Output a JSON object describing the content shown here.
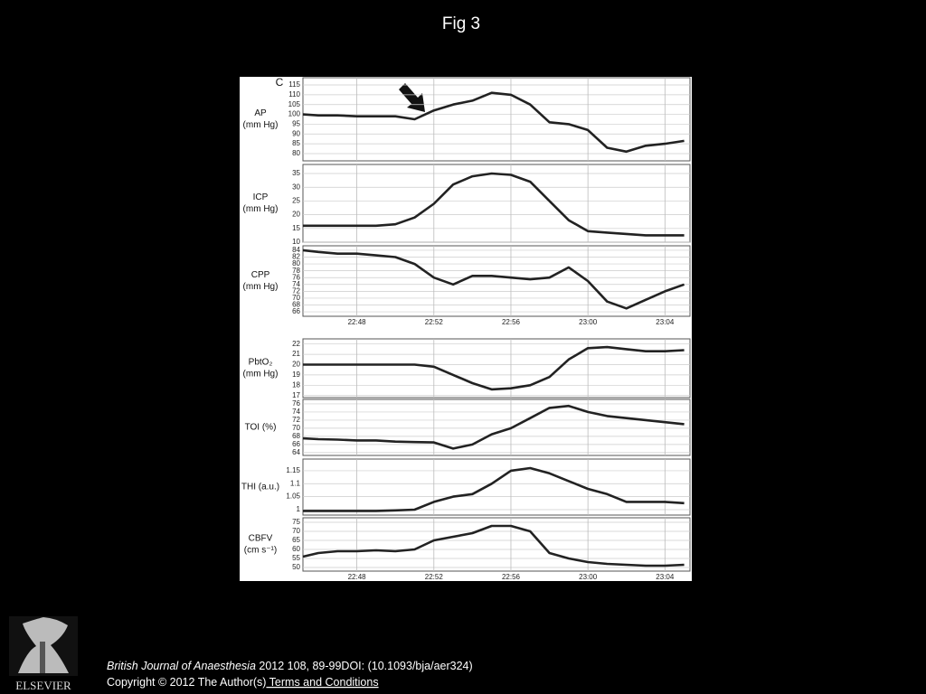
{
  "slide_title": "Fig 3",
  "logo_text": "ELSEVIER",
  "footer": {
    "journal": "British Journal of Anaesthesia",
    "citation": " 2012 108, 89-99DOI: (10.1093/bja/aer324)",
    "copyright": "Copyright © 2012 The Author(s)",
    "link": " Terms and Conditions"
  },
  "chart_data": [
    {
      "type": "line",
      "panel_label": "C",
      "ylabel": [
        "AP",
        "(mm Hg)"
      ],
      "color": "#222222",
      "grid": true,
      "xtick_labels": false,
      "x": [
        1365.2,
        1366,
        1367,
        1368,
        1369,
        1370,
        1371,
        1372,
        1373,
        1374,
        1375,
        1376,
        1377,
        1378,
        1379,
        1380,
        1381,
        1382,
        1383,
        1384,
        1385
      ],
      "values": [
        100,
        99.5,
        99.5,
        99,
        99,
        99,
        97.5,
        102,
        105,
        107,
        111,
        110,
        105,
        96,
        95,
        92,
        83,
        81,
        84,
        85,
        86.5
      ],
      "xlim": [
        1365.2,
        1385.3
      ],
      "ylim": [
        76.3,
        118.7
      ],
      "yticks": [
        80,
        85,
        90,
        95,
        100,
        105,
        110,
        115
      ],
      "xticks": [
        {
          "value": 1368,
          "label": "22:48"
        },
        {
          "value": 1372,
          "label": "22:52"
        },
        {
          "value": 1376,
          "label": "22:56"
        },
        {
          "value": 1380,
          "label": "23:00"
        },
        {
          "value": 1384,
          "label": "23:04"
        }
      ]
    },
    {
      "type": "line",
      "ylabel": [
        "ICP",
        "(mm Hg)"
      ],
      "color": "#222222",
      "grid": true,
      "xtick_labels": false,
      "x": [
        1365.2,
        1366,
        1367,
        1368,
        1369,
        1370,
        1371,
        1372,
        1373,
        1374,
        1375,
        1376,
        1377,
        1378,
        1379,
        1380,
        1381,
        1382,
        1383,
        1384,
        1385
      ],
      "values": [
        16,
        16,
        16,
        16,
        16,
        16.5,
        19,
        24,
        31,
        34,
        35,
        34.5,
        32,
        25,
        18,
        14,
        13.5,
        13,
        12.5,
        12.5,
        12.5
      ],
      "xlim": [
        1365.2,
        1385.3
      ],
      "ylim": [
        10,
        38.3
      ],
      "yticks": [
        10,
        15,
        20,
        25,
        30,
        35
      ],
      "xticks": [
        {
          "value": 1368,
          "label": "22:48"
        },
        {
          "value": 1372,
          "label": "22:52"
        },
        {
          "value": 1376,
          "label": "22:56"
        },
        {
          "value": 1380,
          "label": "23:00"
        },
        {
          "value": 1384,
          "label": "23:04"
        }
      ]
    },
    {
      "type": "line",
      "ylabel": [
        "CPP",
        "(mm Hg)"
      ],
      "color": "#222222",
      "grid": true,
      "xtick_labels": true,
      "x": [
        1365.2,
        1366,
        1367,
        1368,
        1369,
        1370,
        1371,
        1372,
        1373,
        1374,
        1375,
        1376,
        1377,
        1378,
        1379,
        1380,
        1381,
        1382,
        1383,
        1384,
        1385
      ],
      "values": [
        84,
        83.5,
        83,
        83,
        82.5,
        82,
        80,
        76,
        74,
        76.5,
        76.5,
        76,
        75.5,
        76,
        79,
        75,
        69,
        67,
        69.5,
        72,
        74
      ],
      "xlim": [
        1365.2,
        1385.3
      ],
      "ylim": [
        64.7,
        85.3
      ],
      "yticks": [
        66,
        68,
        70,
        72,
        74,
        76,
        78,
        80,
        82,
        84
      ],
      "xticks": [
        {
          "value": 1368,
          "label": "22:48"
        },
        {
          "value": 1372,
          "label": "22:52"
        },
        {
          "value": 1376,
          "label": "22:56"
        },
        {
          "value": 1380,
          "label": "23:00"
        },
        {
          "value": 1384,
          "label": "23:04"
        }
      ]
    },
    {
      "type": "line",
      "ylabel": [
        "PbtO₂",
        "(mm Hg)"
      ],
      "color": "#222222",
      "grid": true,
      "xtick_labels": false,
      "x": [
        1365.2,
        1366,
        1367,
        1368,
        1369,
        1370,
        1371,
        1372,
        1373,
        1374,
        1375,
        1376,
        1377,
        1378,
        1379,
        1380,
        1381,
        1382,
        1383,
        1384,
        1385
      ],
      "values": [
        20,
        20,
        20,
        20,
        20,
        20,
        20,
        19.8,
        19,
        18.2,
        17.6,
        17.7,
        18,
        18.8,
        20.5,
        21.6,
        21.7,
        21.5,
        21.3,
        21.3,
        21.4
      ],
      "xlim": [
        1365.2,
        1385.3
      ],
      "ylim": [
        16.8,
        22.5
      ],
      "yticks": [
        17,
        18,
        19,
        20,
        21,
        22
      ],
      "xticks": [
        {
          "value": 1368,
          "label": "22:48"
        },
        {
          "value": 1372,
          "label": "22:52"
        },
        {
          "value": 1376,
          "label": "22:56"
        },
        {
          "value": 1380,
          "label": "23:00"
        },
        {
          "value": 1384,
          "label": "23:04"
        }
      ]
    },
    {
      "type": "line",
      "ylabel": [
        "TOI (%)"
      ],
      "color": "#222222",
      "grid": true,
      "xtick_labels": false,
      "x": [
        1365.2,
        1366,
        1367,
        1368,
        1369,
        1370,
        1371,
        1372,
        1373,
        1374,
        1375,
        1376,
        1377,
        1378,
        1379,
        1380,
        1381,
        1382,
        1383,
        1384,
        1385
      ],
      "values": [
        67.5,
        67.3,
        67.2,
        67,
        67,
        66.7,
        66.6,
        66.5,
        65,
        66,
        68.5,
        70,
        72.5,
        75,
        75.5,
        74,
        73,
        72.5,
        72,
        71.5,
        71
      ],
      "xlim": [
        1365.2,
        1385.3
      ],
      "ylim": [
        63.3,
        77.1
      ],
      "yticks": [
        64,
        66,
        68,
        70,
        72,
        74,
        76
      ],
      "xticks": [
        {
          "value": 1368,
          "label": "22:48"
        },
        {
          "value": 1372,
          "label": "22:52"
        },
        {
          "value": 1376,
          "label": "22:56"
        },
        {
          "value": 1380,
          "label": "23:00"
        },
        {
          "value": 1384,
          "label": "23:04"
        }
      ]
    },
    {
      "type": "line",
      "ylabel": [
        "THI (a.u.)"
      ],
      "color": "#222222",
      "grid": true,
      "xtick_labels": false,
      "x": [
        1365.2,
        1366,
        1367,
        1368,
        1369,
        1370,
        1371,
        1372,
        1373,
        1374,
        1375,
        1376,
        1377,
        1378,
        1379,
        1380,
        1381,
        1382,
        1383,
        1384,
        1385
      ],
      "values": [
        0.995,
        0.995,
        0.995,
        0.995,
        0.995,
        0.997,
        1.0,
        1.03,
        1.05,
        1.06,
        1.1,
        1.15,
        1.16,
        1.14,
        1.11,
        1.08,
        1.06,
        1.03,
        1.03,
        1.03,
        1.025
      ],
      "xlim": [
        1365.2,
        1385.3
      ],
      "ylim": [
        0.979,
        1.195
      ],
      "yticks": [
        1,
        1.05,
        1.1,
        1.15
      ],
      "xticks": [
        {
          "value": 1368,
          "label": "22:48"
        },
        {
          "value": 1372,
          "label": "22:52"
        },
        {
          "value": 1376,
          "label": "22:56"
        },
        {
          "value": 1380,
          "label": "23:00"
        },
        {
          "value": 1384,
          "label": "23:04"
        }
      ]
    },
    {
      "type": "line",
      "ylabel": [
        "CBFV",
        "(cm s⁻¹)"
      ],
      "color": "#222222",
      "grid": true,
      "xtick_labels": true,
      "x": [
        1365.2,
        1366,
        1367,
        1368,
        1369,
        1370,
        1371,
        1372,
        1373,
        1374,
        1375,
        1376,
        1377,
        1378,
        1379,
        1380,
        1381,
        1382,
        1383,
        1384,
        1385
      ],
      "values": [
        56,
        58,
        59,
        59,
        59.5,
        59,
        60,
        65,
        67,
        69,
        73,
        73,
        70,
        58,
        55,
        53,
        52,
        51.5,
        51,
        51,
        51.5
      ],
      "xlim": [
        1365.2,
        1385.3
      ],
      "ylim": [
        48,
        77.5
      ],
      "yticks": [
        50,
        55,
        60,
        65,
        70,
        75
      ],
      "xticks": [
        {
          "value": 1368,
          "label": "22:48"
        },
        {
          "value": 1372,
          "label": "22:52"
        },
        {
          "value": 1376,
          "label": "22:56"
        },
        {
          "value": 1380,
          "label": "23:00"
        },
        {
          "value": 1384,
          "label": "23:04"
        }
      ]
    }
  ]
}
